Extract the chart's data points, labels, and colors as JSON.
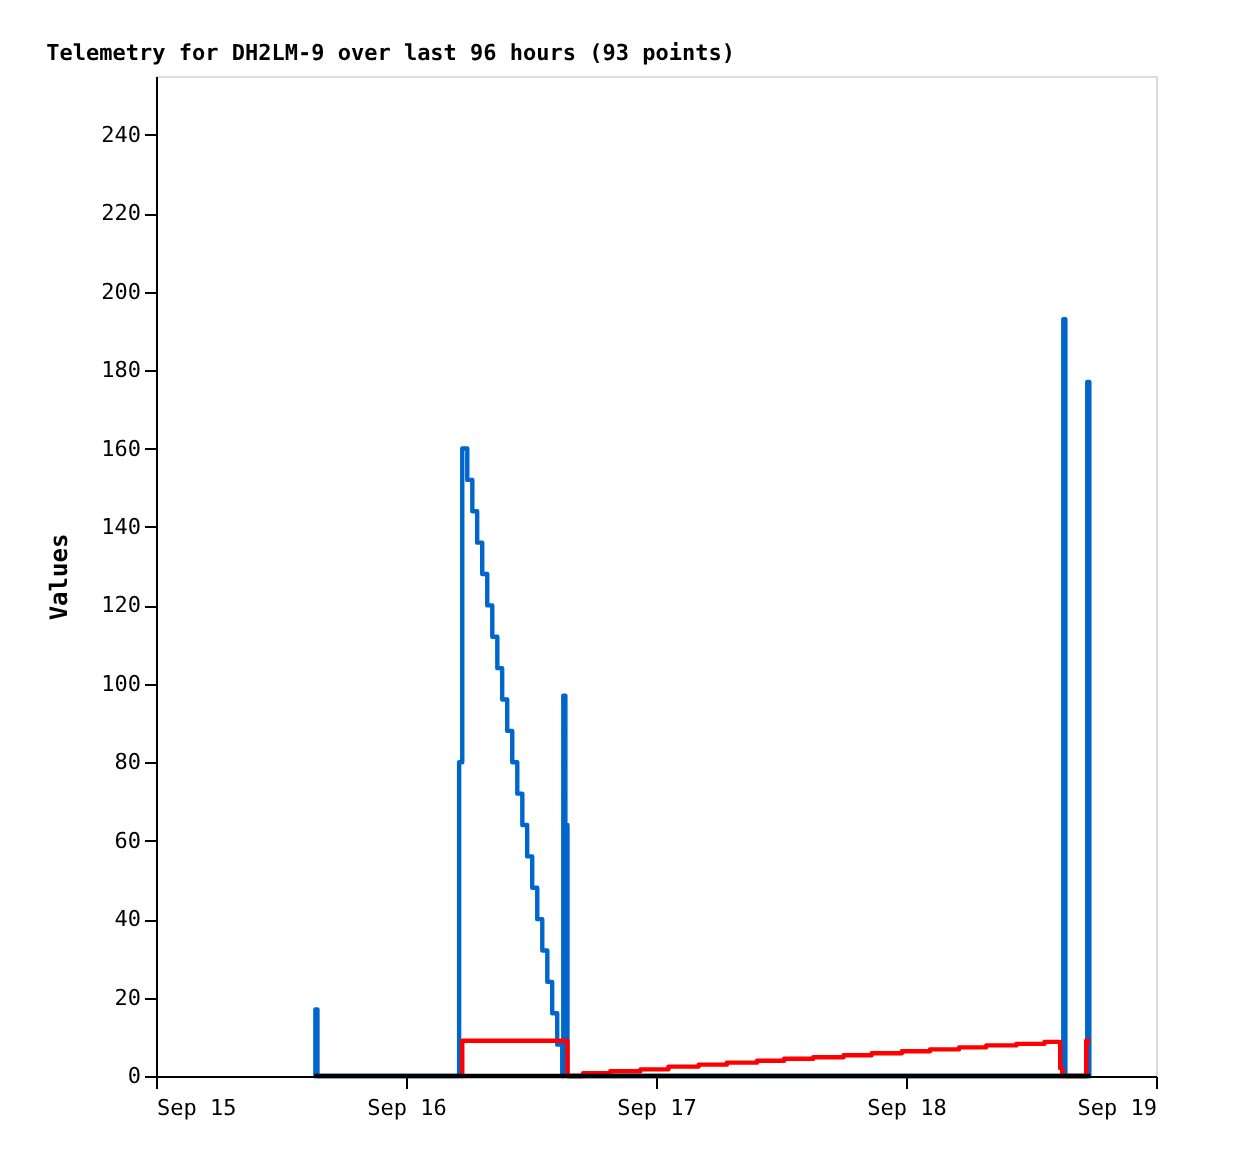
{
  "chart_data": {
    "type": "step",
    "title": "Telemetry for DH2LM-9 over last 96 hours (93 points)",
    "ylabel": "Values",
    "xlim": [
      "--09-15",
      "--09-19"
    ],
    "xticks": [
      {
        "value": "--09-15",
        "label": "Sep 15"
      },
      {
        "value": "--09-16",
        "label": "Sep 16"
      },
      {
        "value": "--09-17",
        "label": "Sep 17"
      },
      {
        "value": "--09-18",
        "label": "Sep 18"
      },
      {
        "value": "--09-19",
        "label": "Sep 19"
      }
    ],
    "ylim": [
      0,
      255
    ],
    "yticks": [
      0,
      20,
      40,
      60,
      80,
      100,
      120,
      140,
      160,
      180,
      200,
      220,
      240
    ],
    "grid": false,
    "legend": false,
    "marker": "none",
    "line_style": "solid",
    "series": [
      {
        "color": "#0066cc",
        "x": [
          "--09-15T15:12",
          "--09-15T15:18",
          "--09-15T15:30",
          "--09-16T05:06",
          "--09-16T05:24",
          "--09-16T05:53",
          "--09-16T06:22",
          "--09-16T06:50",
          "--09-16T07:19",
          "--09-16T07:48",
          "--09-16T08:17",
          "--09-16T08:46",
          "--09-16T09:14",
          "--09-16T09:43",
          "--09-16T10:12",
          "--09-16T10:41",
          "--09-16T11:10",
          "--09-16T11:38",
          "--09-16T12:07",
          "--09-16T12:36",
          "--09-16T13:05",
          "--09-16T13:34",
          "--09-16T14:02",
          "--09-16T14:31",
          "--09-16T15:00",
          "--09-16T15:06",
          "--09-16T15:18",
          "--09-16T15:30",
          "--09-18T15:06",
          "--09-18T15:18",
          "--09-18T17:24",
          "--09-18T17:36",
          "--09-18T17:42"
        ],
        "values": [
          0,
          17,
          0,
          80,
          160,
          152,
          144,
          136,
          128,
          120,
          112,
          104,
          96,
          88,
          80,
          72,
          64,
          56,
          48,
          40,
          32,
          24,
          16,
          8,
          0,
          97,
          64,
          0,
          193,
          0,
          177,
          0,
          0
        ]
      },
      {
        "color": "#ff0000",
        "x": [
          "--09-16T05:18",
          "--09-16T05:24",
          "--09-16T15:30",
          "--09-16T17:00",
          "--09-16T19:36",
          "--09-16T22:30",
          "--09-17T01:12",
          "--09-17T04:06",
          "--09-17T06:48",
          "--09-17T09:42",
          "--09-17T12:18",
          "--09-17T15:06",
          "--09-17T18:00",
          "--09-17T20:42",
          "--09-17T23:36",
          "--09-18T02:18",
          "--09-18T05:06",
          "--09-18T07:42",
          "--09-18T10:36",
          "--09-18T13:18",
          "--09-18T14:48",
          "--09-18T15:00",
          "--09-18T17:18",
          "--09-18T17:42"
        ],
        "values": [
          0,
          9,
          0,
          0.7,
          1.2,
          1.7,
          2.4,
          2.9,
          3.4,
          3.9,
          4.4,
          4.8,
          5.3,
          5.8,
          6.3,
          6.8,
          7.3,
          7.8,
          8.2,
          8.7,
          2,
          0,
          9,
          9
        ]
      },
      {
        "color": "#000000",
        "x": [
          "--09-15T15:12",
          "--09-18T17:42"
        ],
        "values": [
          0,
          0
        ]
      }
    ]
  }
}
